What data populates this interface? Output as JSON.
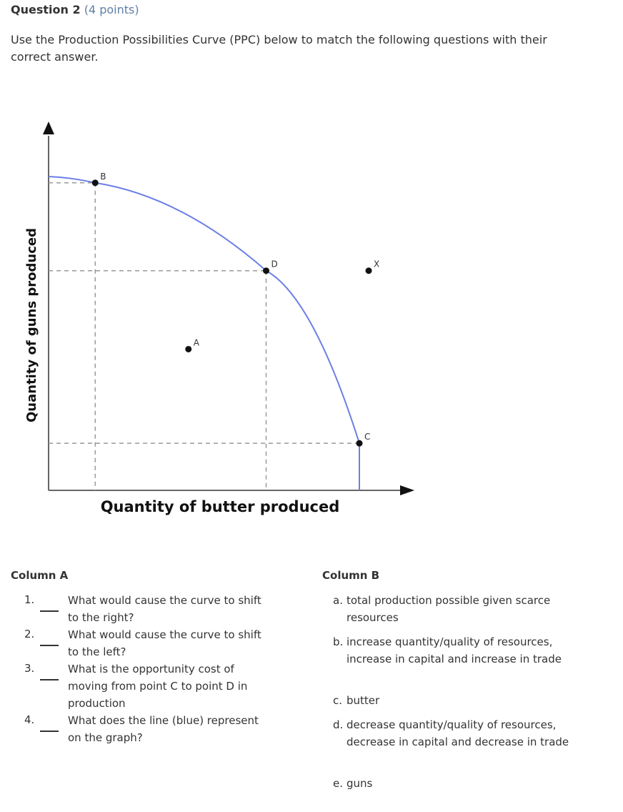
{
  "question": {
    "title": "Question 2",
    "points": "(4 points)",
    "instructions": "Use the Production Possibilities Curve (PPC) below to match the following questions with their correct answer."
  },
  "chart_data": {
    "type": "line",
    "xlabel": "Quantity of butter produced",
    "ylabel": "Quantity of guns produced",
    "curve_color": "#6b7fe6",
    "series": [
      {
        "values": [
          [
            0,
            10
          ],
          [
            1.5,
            9.8
          ],
          [
            7.0,
            7.0
          ],
          [
            10.0,
            1.5
          ],
          [
            10.0,
            0
          ]
        ]
      }
    ],
    "points": [
      {
        "label": "A",
        "x": 4.5,
        "y": 4.5,
        "on_curve": false
      },
      {
        "label": "B",
        "x": 1.5,
        "y": 9.8,
        "on_curve": true
      },
      {
        "label": "C",
        "x": 10.0,
        "y": 1.5,
        "on_curve": true
      },
      {
        "label": "D",
        "x": 7.0,
        "y": 7.0,
        "on_curve": true
      },
      {
        "label": "X",
        "x": 10.3,
        "y": 7.0,
        "on_curve": false
      }
    ]
  },
  "columnA": {
    "header": "Column A",
    "items": [
      {
        "num": "1.",
        "text": "What would cause the curve to shift to the right?"
      },
      {
        "num": "2.",
        "text": "What would cause the curve to shift to the left?"
      },
      {
        "num": "3.",
        "text": "What is the opportunity cost of moving from point C to point D in production"
      },
      {
        "num": "4.",
        "text": "What does the line (blue) represent on the graph?"
      }
    ]
  },
  "columnB": {
    "header": "Column B",
    "options": [
      {
        "letter": "a.",
        "text": "total production possible given scarce resources"
      },
      {
        "letter": "b.",
        "text": "increase quantity/quality of resources, increase in capital and increase in trade"
      },
      {
        "letter": "c.",
        "text": "butter"
      },
      {
        "letter": "d.",
        "text": "decrease quantity/quality of resources, decrease in capital and decrease in trade"
      },
      {
        "letter": "e.",
        "text": "guns"
      }
    ]
  }
}
